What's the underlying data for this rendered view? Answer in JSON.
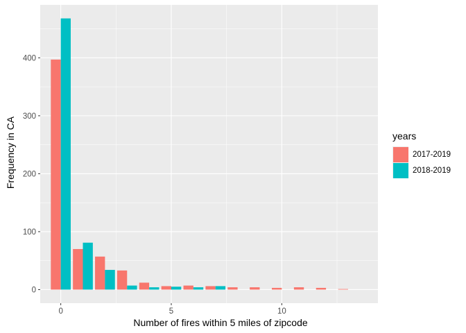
{
  "chart_data": {
    "type": "bar",
    "title": "",
    "xlabel": "Number of fires within 5 miles of zipcode",
    "ylabel": "Frequency in CA",
    "xlim": [
      -0.93,
      14.35
    ],
    "ylim": [
      -23.4,
      491.4
    ],
    "xticks": [
      0,
      5,
      10
    ],
    "yticks": [
      0,
      100,
      200,
      300,
      400
    ],
    "x": [
      0,
      1,
      2,
      3,
      4,
      5,
      6,
      7,
      8,
      9,
      10,
      11,
      12,
      13
    ],
    "series": [
      {
        "name": "2017-2019",
        "color": "#F8766D",
        "values": [
          397,
          70,
          57,
          33,
          12,
          6,
          7,
          6,
          4,
          4,
          3,
          4,
          3,
          1
        ]
      },
      {
        "name": "2018-2019",
        "color": "#00BFC4",
        "values": [
          468,
          81,
          34,
          7,
          4,
          5,
          4,
          6,
          null,
          null,
          null,
          null,
          null,
          null
        ]
      }
    ],
    "legend": {
      "title": "years",
      "position": "right"
    }
  }
}
